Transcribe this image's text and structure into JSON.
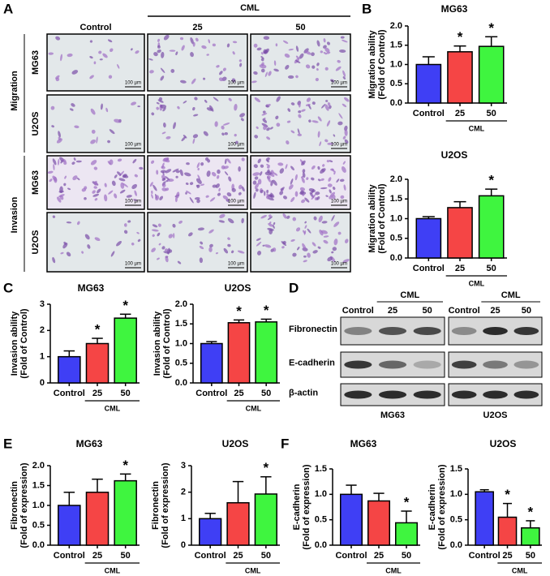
{
  "figure": {
    "panel_labels": [
      "A",
      "B",
      "C",
      "D",
      "E",
      "F"
    ],
    "images": {
      "columns": [
        "Control",
        "25",
        "50"
      ],
      "group": "CML",
      "sections": [
        "Migration",
        "Invasion"
      ],
      "cell_lines": [
        "MG63",
        "U2OS"
      ],
      "scale_bar": "100 µm"
    },
    "blot": {
      "lanes": [
        "Control",
        "25",
        "50"
      ],
      "group": "CML",
      "proteins": [
        "Fibronectin",
        "E-cadherin",
        "β-actin"
      ],
      "cell_lines": [
        "MG63",
        "U2OS"
      ]
    }
  },
  "chart_data": [
    {
      "type": "bar",
      "title": "MG63",
      "ylabel": [
        "Migration ability",
        "(Fold of Control)"
      ],
      "categories": [
        "Control",
        "25",
        "50"
      ],
      "group_label": "CML",
      "values": [
        1.0,
        1.33,
        1.47
      ],
      "errors": [
        0.2,
        0.15,
        0.25
      ],
      "colors": [
        "#3f3ff5",
        "#f54545",
        "#3ff53f"
      ],
      "significance": [
        null,
        "*",
        "*"
      ],
      "ylim": [
        0,
        2
      ],
      "yticks": [
        {
          "value": 0,
          "label": "0.0"
        },
        {
          "value": 0.5,
          "label": "0.5"
        },
        {
          "value": 1,
          "label": "1.0"
        },
        {
          "value": 1.5,
          "label": "1.5"
        },
        {
          "value": 2,
          "label": "2.0"
        }
      ]
    },
    {
      "type": "bar",
      "title": "U2OS",
      "ylabel": [
        "Migration ability",
        "(Fold of Control)"
      ],
      "categories": [
        "Control",
        "25",
        "50"
      ],
      "group_label": "CML",
      "values": [
        1.0,
        1.28,
        1.58
      ],
      "errors": [
        0.05,
        0.15,
        0.17
      ],
      "colors": [
        "#3f3ff5",
        "#f54545",
        "#3ff53f"
      ],
      "significance": [
        null,
        null,
        "*"
      ],
      "ylim": [
        0,
        2
      ],
      "yticks": [
        {
          "value": 0,
          "label": "0.0"
        },
        {
          "value": 0.5,
          "label": "0.5"
        },
        {
          "value": 1,
          "label": "1.0"
        },
        {
          "value": 1.5,
          "label": "1.5"
        },
        {
          "value": 2,
          "label": "2.0"
        }
      ]
    },
    {
      "type": "bar",
      "title": "MG63",
      "ylabel": [
        "Invasion ability",
        "(Fold of Control)"
      ],
      "categories": [
        "Control",
        "25",
        "50"
      ],
      "group_label": "CML",
      "values": [
        1.0,
        1.5,
        2.47
      ],
      "errors": [
        0.22,
        0.2,
        0.15
      ],
      "colors": [
        "#3f3ff5",
        "#f54545",
        "#3ff53f"
      ],
      "significance": [
        null,
        "*",
        "*"
      ],
      "ylim": [
        0,
        3
      ],
      "yticks": [
        0,
        1,
        2,
        3
      ]
    },
    {
      "type": "bar",
      "title": "U2OS",
      "ylabel": [
        "Invasion ability",
        "(Fold of Control)"
      ],
      "categories": [
        "Control",
        "25",
        "50"
      ],
      "group_label": "CML",
      "values": [
        1.0,
        1.53,
        1.55
      ],
      "errors": [
        0.05,
        0.07,
        0.07
      ],
      "colors": [
        "#3f3ff5",
        "#f54545",
        "#3ff53f"
      ],
      "significance": [
        null,
        "*",
        "*"
      ],
      "ylim": [
        0,
        2
      ],
      "yticks": [
        {
          "value": 0,
          "label": "0.0"
        },
        {
          "value": 0.5,
          "label": "0.5"
        },
        {
          "value": 1,
          "label": "1.0"
        },
        {
          "value": 1.5,
          "label": "1.5"
        },
        {
          "value": 2,
          "label": "2.0"
        }
      ]
    },
    {
      "type": "bar",
      "title": "MG63",
      "ylabel": [
        "Fibronectin",
        "(Fold of expression)"
      ],
      "categories": [
        "Control",
        "25",
        "50"
      ],
      "group_label": "CML",
      "values": [
        1.0,
        1.33,
        1.62
      ],
      "errors": [
        0.33,
        0.33,
        0.17
      ],
      "colors": [
        "#3f3ff5",
        "#f54545",
        "#3ff53f"
      ],
      "significance": [
        null,
        null,
        "*"
      ],
      "ylim": [
        0,
        2
      ],
      "yticks": [
        {
          "value": 0,
          "label": "0.0"
        },
        {
          "value": 0.5,
          "label": "0.5"
        },
        {
          "value": 1,
          "label": "1.0"
        },
        {
          "value": 1.5,
          "label": "1.5"
        },
        {
          "value": 2,
          "label": "2.0"
        }
      ]
    },
    {
      "type": "bar",
      "title": "U2OS",
      "ylabel": [
        "Fibronectin",
        "(Fold of expression)"
      ],
      "categories": [
        "Control",
        "25",
        "50"
      ],
      "group_label": "CML",
      "values": [
        1.0,
        1.6,
        1.93
      ],
      "errors": [
        0.2,
        0.8,
        0.65
      ],
      "colors": [
        "#3f3ff5",
        "#f54545",
        "#3ff53f"
      ],
      "significance": [
        null,
        null,
        "*"
      ],
      "ylim": [
        0,
        3
      ],
      "yticks": [
        0,
        1,
        2,
        3
      ]
    },
    {
      "type": "bar",
      "title": "MG63",
      "ylabel": [
        "E-cadherin",
        "(Fold of expression)"
      ],
      "categories": [
        "Control",
        "25",
        "50"
      ],
      "group_label": "CML",
      "values": [
        1.0,
        0.87,
        0.44
      ],
      "errors": [
        0.18,
        0.15,
        0.23
      ],
      "colors": [
        "#3f3ff5",
        "#f54545",
        "#3ff53f"
      ],
      "significance": [
        null,
        null,
        "*"
      ],
      "ylim": [
        0,
        1.5
      ],
      "yticks": [
        {
          "value": 0,
          "label": "0.0"
        },
        {
          "value": 0.5,
          "label": "0.5"
        },
        {
          "value": 1,
          "label": "1.0"
        },
        {
          "value": 1.5,
          "label": "1.5"
        }
      ]
    },
    {
      "type": "bar",
      "title": "U2OS",
      "ylabel": [
        "E-cadherin",
        "(Fold of expression)"
      ],
      "categories": [
        "Control",
        "25",
        "50"
      ],
      "group_label": "CML",
      "values": [
        1.05,
        0.55,
        0.34
      ],
      "errors": [
        0.04,
        0.27,
        0.14
      ],
      "colors": [
        "#3f3ff5",
        "#f54545",
        "#3ff53f"
      ],
      "significance": [
        null,
        "*",
        "*"
      ],
      "ylim": [
        0,
        1.5
      ],
      "yticks": [
        {
          "value": 0,
          "label": "0.0"
        },
        {
          "value": 0.5,
          "label": "0.5"
        },
        {
          "value": 1,
          "label": "1.0"
        },
        {
          "value": 1.5,
          "label": "1.5"
        }
      ]
    }
  ]
}
